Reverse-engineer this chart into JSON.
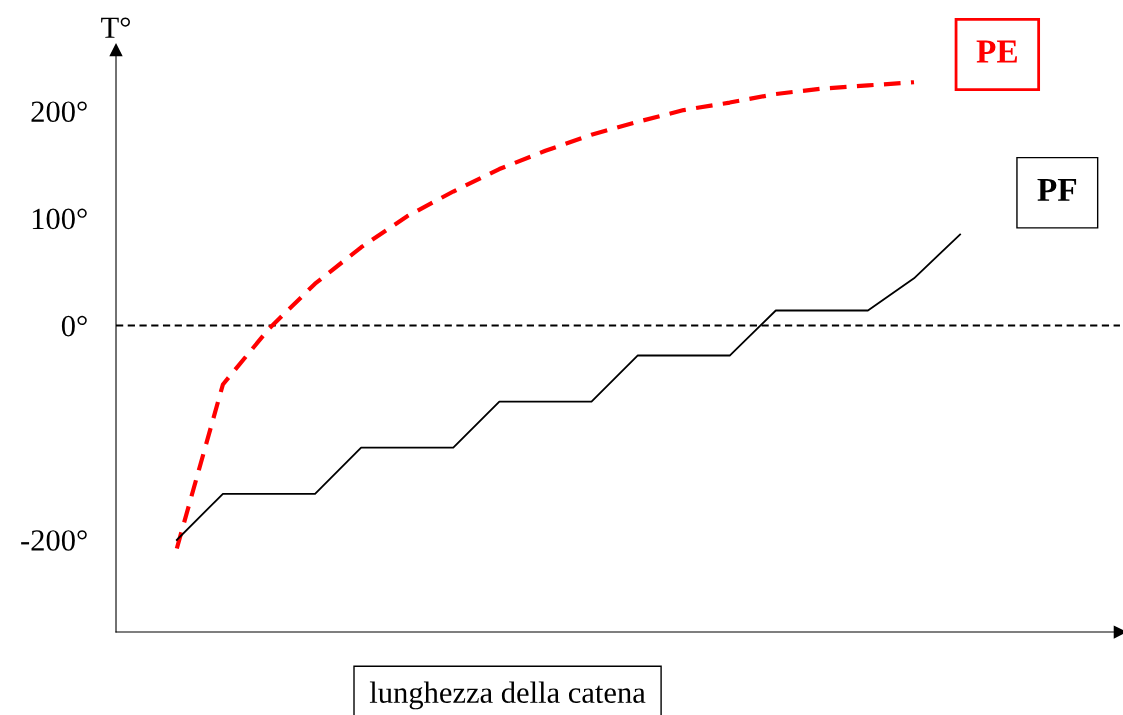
{
  "chart_data": {
    "type": "line",
    "xlabel": "lunghezza della catena",
    "ylabel": "T°",
    "categories": [
      null,
      null,
      null,
      null,
      null,
      null,
      null,
      null,
      null,
      null,
      null,
      null,
      null,
      null,
      null,
      null,
      null,
      null
    ],
    "series": [
      {
        "name": "PE",
        "color": "#ff0000",
        "line_style": "dashed",
        "values": [
          -208,
          -55,
          -3,
          39,
          73,
          102,
          125,
          146,
          163,
          178,
          190,
          201,
          208,
          216,
          221,
          224,
          227,
          null
        ]
      },
      {
        "name": "PF",
        "color": "#000000",
        "line_style": "solid",
        "values": [
          -200,
          -157,
          -157,
          -157,
          -114,
          -114,
          -114,
          -71,
          -71,
          -71,
          -28,
          -28,
          -28,
          14,
          14,
          14,
          44,
          85
        ]
      }
    ],
    "ylim": [
      -286,
      257
    ],
    "yticks": [
      {
        "value": -200,
        "label": "-200°"
      },
      {
        "value": 0,
        "label": "0°"
      },
      {
        "value": 100,
        "label": "100°"
      },
      {
        "value": 200,
        "label": "200°"
      }
    ],
    "ref_lines": [
      {
        "axis": "y",
        "value": 0,
        "color": "#000000",
        "line_style": "dashed"
      }
    ],
    "grid": false,
    "legend": false,
    "marker": "none"
  }
}
